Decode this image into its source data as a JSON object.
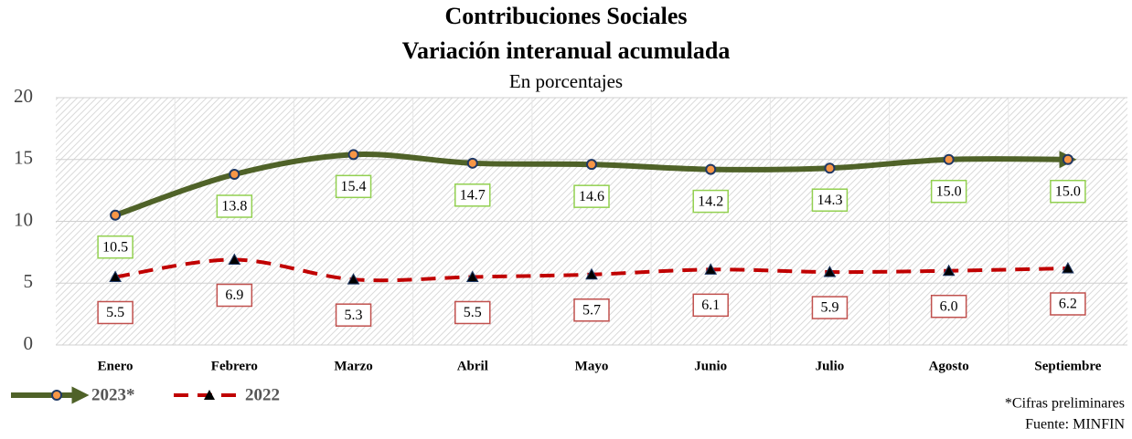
{
  "chart_data": {
    "type": "line",
    "title": "Contribuciones Sociales",
    "subtitle": "Variación interanual acumulada",
    "unit_label": "En porcentajes",
    "categories": [
      "Enero",
      "Febrero",
      "Marzo",
      "Abril",
      "Mayo",
      "Junio",
      "Julio",
      "Agosto",
      "Septiembre"
    ],
    "series": [
      {
        "name": "2023*",
        "color": "#4f6228",
        "values": [
          10.5,
          13.8,
          15.4,
          14.7,
          14.6,
          14.2,
          14.3,
          15,
          15
        ],
        "value_labels": [
          "10.5",
          "13.8",
          "15.4",
          "14.7",
          "14.6",
          "14.2",
          "14.3",
          "15.0",
          "15.0"
        ]
      },
      {
        "name": "2022",
        "color": "#c00000",
        "values": [
          5.5,
          6.9,
          5.3,
          5.5,
          5.7,
          6.1,
          5.9,
          6,
          6.2
        ],
        "value_labels": [
          "5.5",
          "6.9",
          "5.3",
          "5.5",
          "5.7",
          "6.1",
          "5.9",
          "6.0",
          "6.2"
        ]
      }
    ],
    "ylim": [
      0,
      20
    ],
    "yticks": [
      0,
      5,
      10,
      15,
      20
    ],
    "grid": true,
    "legend": "bottom-left",
    "notes": [
      "*Cifras preliminares",
      "Fuente: MINFIN"
    ]
  }
}
